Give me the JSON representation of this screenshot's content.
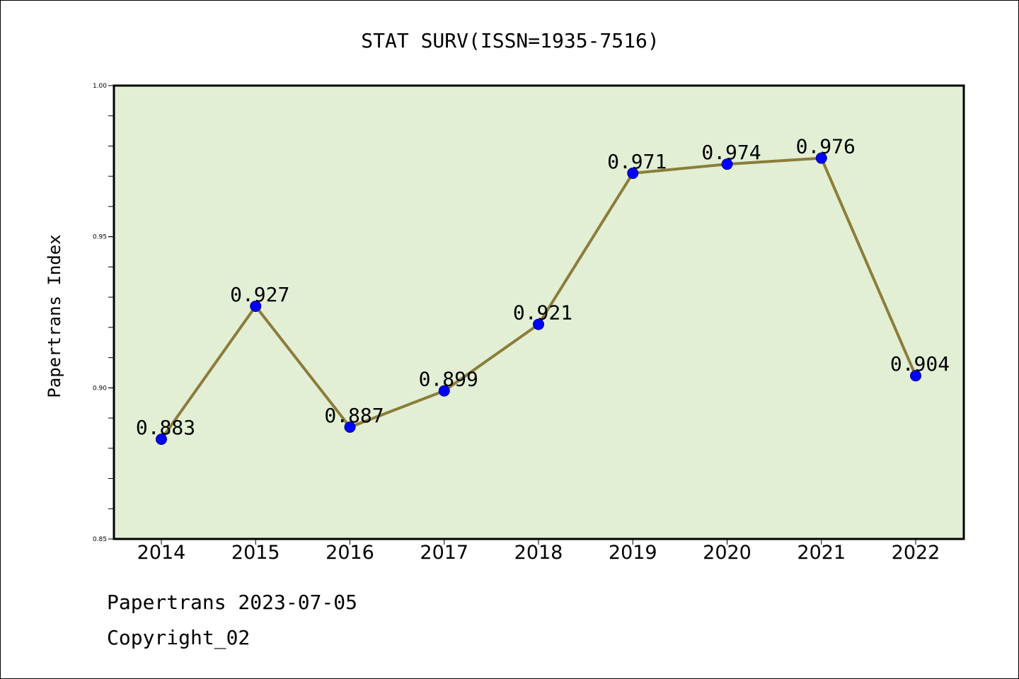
{
  "chart_data": {
    "type": "line",
    "title": "STAT SURV(ISSN=1935-7516)",
    "ylabel": "Papertrans Index",
    "xlabel": "",
    "categories": [
      "2014",
      "2015",
      "2016",
      "2017",
      "2018",
      "2019",
      "2020",
      "2021",
      "2022"
    ],
    "values": [
      0.883,
      0.927,
      0.887,
      0.899,
      0.921,
      0.971,
      0.974,
      0.976,
      0.904
    ],
    "data_labels": [
      "0.883",
      "0.927",
      "0.887",
      "0.899",
      "0.921",
      "0.971",
      "0.974",
      "0.976",
      "0.904"
    ],
    "ylim": [
      0.85,
      1.0
    ],
    "yticks": [
      0.85,
      0.9,
      0.95,
      1.0
    ],
    "ytick_labels": [
      "0.85",
      "0.90",
      "0.95",
      "1.00"
    ],
    "y_minor_step": 0.01,
    "grid": false,
    "colors": {
      "plot_background": "#e2efd5",
      "line": "#8b7d39",
      "marker": "#0000ff"
    }
  },
  "footer": {
    "line1": "Papertrans 2023-07-05",
    "line2": "Copyright_02"
  }
}
